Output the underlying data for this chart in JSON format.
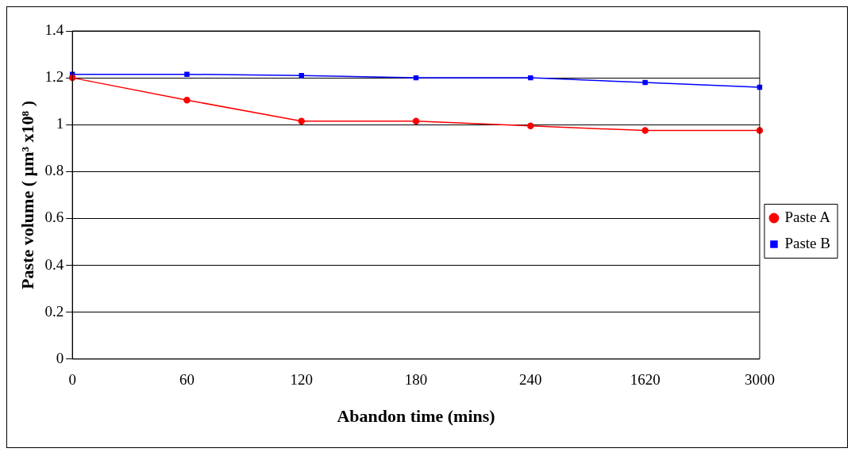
{
  "chart_data": {
    "type": "line",
    "xlabel": "Abandon time (mins)",
    "ylabel": "Paste volume ( µm³ x10⁸ )",
    "categories": [
      "0",
      "60",
      "120",
      "180",
      "240",
      "1620",
      "3000"
    ],
    "series": [
      {
        "name": "Paste A",
        "color": "#ff0000",
        "marker": "circle",
        "values": [
          1.2,
          1.105,
          1.015,
          1.015,
          0.995,
          0.975,
          0.975
        ]
      },
      {
        "name": "Paste B",
        "color": "#0000ff",
        "marker": "square",
        "values": [
          1.215,
          1.215,
          1.21,
          1.2,
          1.2,
          1.18,
          1.16
        ]
      }
    ],
    "ylim": [
      0,
      1.4
    ],
    "yticks": [
      0,
      0.2,
      0.4,
      0.6,
      0.8,
      1,
      1.2,
      1.4
    ],
    "grid": "y",
    "legend": "right",
    "line_style": "solid"
  }
}
